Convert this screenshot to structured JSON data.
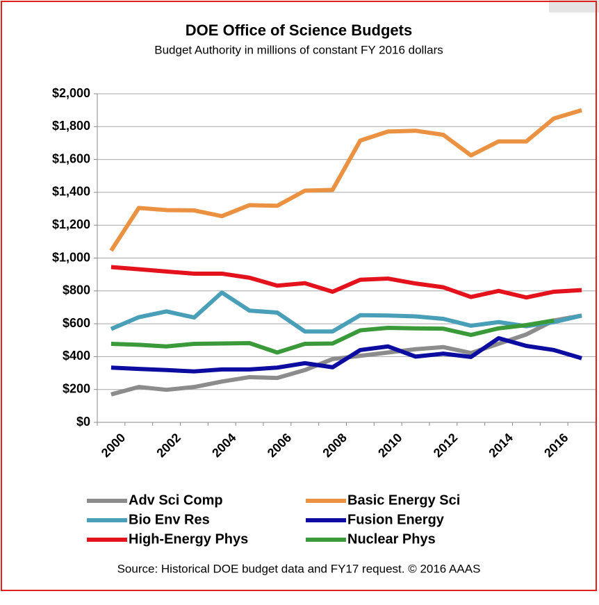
{
  "chart_data": {
    "type": "line",
    "title": "DOE Office of Science Budgets",
    "subtitle": "Budget Authority in millions of constant FY 2016 dollars",
    "source": "Source: Historical DOE budget data and FY17 request. © 2016 AAAS",
    "categories": [
      "2000",
      null,
      "2002",
      null,
      "2004",
      null,
      "2006",
      null,
      "2008",
      null,
      "2010",
      null,
      "2012",
      null,
      "2014",
      null,
      "2016",
      null
    ],
    "ylim": [
      0,
      2000
    ],
    "yticks": [
      {
        "value": 0,
        "label": "$0"
      },
      {
        "value": 200,
        "label": "$200"
      },
      {
        "value": 400,
        "label": "$400"
      },
      {
        "value": 600,
        "label": "$600"
      },
      {
        "value": 800,
        "label": "$800"
      },
      {
        "value": 1000,
        "label": "$1,000"
      },
      {
        "value": 1200,
        "label": "$1,200"
      },
      {
        "value": 1400,
        "label": "$1,400"
      },
      {
        "value": 1600,
        "label": "$1,600"
      },
      {
        "value": 1800,
        "label": "$1,800"
      },
      {
        "value": 2000,
        "label": "$2,000"
      }
    ],
    "grid": true,
    "series": [
      {
        "name": "Adv Sci Comp",
        "color": "#8c8c8c",
        "values": [
          170,
          215,
          198,
          215,
          248,
          275,
          270,
          318,
          385,
          405,
          425,
          445,
          458,
          422,
          478,
          535,
          620,
          650
        ]
      },
      {
        "name": "Basic Energy Sci",
        "color": "#eb9142",
        "values": [
          1045,
          1305,
          1292,
          1290,
          1255,
          1322,
          1318,
          1410,
          1415,
          1715,
          1770,
          1775,
          1750,
          1625,
          1710,
          1710,
          1850,
          1900
        ]
      },
      {
        "name": "Bio Env Res",
        "color": "#4a9fb8",
        "values": [
          568,
          640,
          675,
          638,
          790,
          680,
          668,
          553,
          553,
          652,
          650,
          645,
          630,
          588,
          610,
          585,
          610,
          650
        ]
      },
      {
        "name": "Fusion Energy",
        "color": "#0c0ca0",
        "values": [
          333,
          325,
          318,
          310,
          322,
          322,
          333,
          360,
          335,
          440,
          462,
          400,
          418,
          398,
          512,
          465,
          440,
          390
        ]
      },
      {
        "name": "High-Energy Phys",
        "color": "#e3121c",
        "values": [
          945,
          932,
          918,
          905,
          905,
          880,
          832,
          847,
          795,
          868,
          875,
          845,
          822,
          763,
          800,
          760,
          795,
          805
        ]
      },
      {
        "name": "Nuclear Phys",
        "color": "#3a9a3a",
        "values": [
          478,
          472,
          462,
          478,
          480,
          482,
          425,
          478,
          480,
          560,
          575,
          572,
          570,
          532,
          572,
          592,
          620,
          null
        ]
      }
    ]
  }
}
